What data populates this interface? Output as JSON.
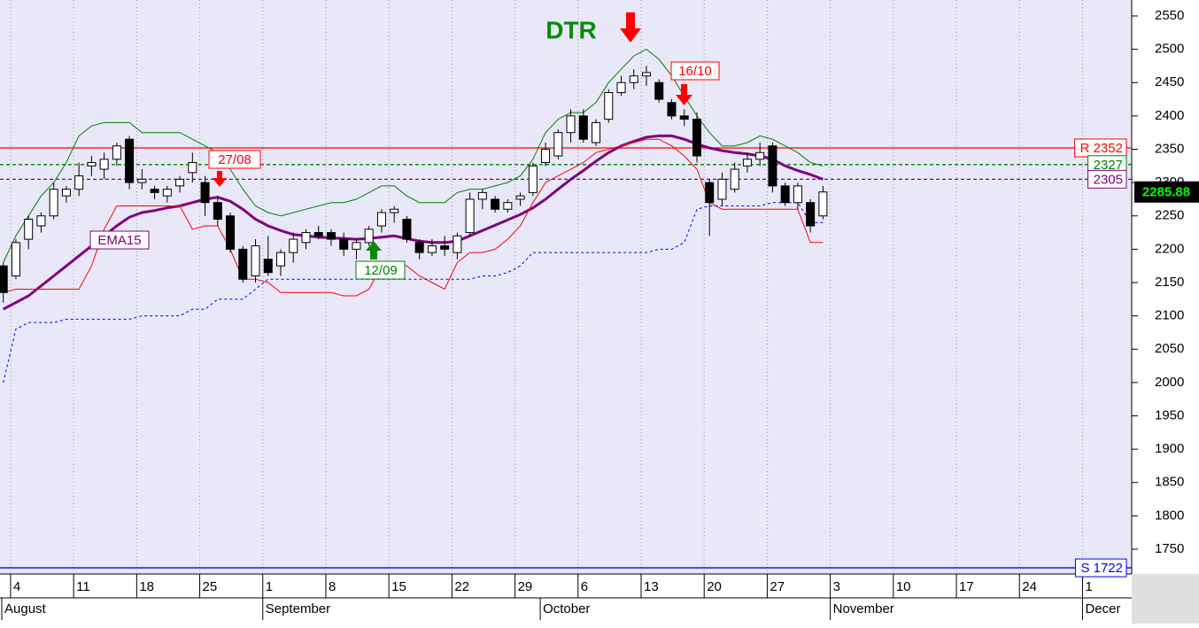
{
  "chart_data": {
    "type": "candlestick",
    "xlim": [
      -1.26,
      88.48
    ],
    "ylim": [
      1712.8,
      2573.9
    ],
    "yticks": [
      1750,
      1800,
      1850,
      1900,
      1950,
      2000,
      2050,
      2100,
      2150,
      2200,
      2250,
      2300,
      2350,
      2400,
      2450,
      2500,
      2550
    ],
    "xticks": [
      {
        "value": 0,
        "label": "4"
      },
      {
        "value": 5,
        "label": "11"
      },
      {
        "value": 10,
        "label": "18"
      },
      {
        "value": 15,
        "label": "25"
      },
      {
        "value": 20,
        "label": "1"
      },
      {
        "value": 25,
        "label": "8"
      },
      {
        "value": 30,
        "label": "15"
      },
      {
        "value": 35,
        "label": "22"
      },
      {
        "value": 40,
        "label": "29"
      },
      {
        "value": 45,
        "label": "6"
      },
      {
        "value": 50,
        "label": "13"
      },
      {
        "value": 55,
        "label": "20"
      },
      {
        "value": 60,
        "label": "27"
      },
      {
        "value": 65,
        "label": "3"
      },
      {
        "value": 70,
        "label": "10"
      },
      {
        "value": 75,
        "label": "17"
      },
      {
        "value": 80,
        "label": "24"
      },
      {
        "value": 85,
        "label": "1"
      }
    ],
    "months": [
      {
        "value": -1,
        "label": "August"
      },
      {
        "value": 20,
        "label": "September"
      },
      {
        "value": 42,
        "label": "October"
      },
      {
        "value": 65,
        "label": "November"
      },
      {
        "value": 85,
        "label": "Decer"
      }
    ],
    "candles": {
      "x": [
        -1,
        0,
        1,
        2,
        3,
        4,
        5,
        6,
        7,
        8,
        9,
        10,
        11,
        12,
        13,
        14,
        15,
        16,
        17,
        18,
        19,
        20,
        21,
        22,
        23,
        24,
        25,
        26,
        27,
        28,
        29,
        30,
        31,
        32,
        33,
        34,
        35,
        36,
        37,
        38,
        39,
        40,
        41,
        42,
        43,
        44,
        45,
        46,
        47,
        48,
        49,
        50,
        51,
        52,
        53,
        54,
        55,
        56,
        57,
        58,
        59,
        60,
        61,
        62,
        63,
        64
      ],
      "open": [
        2175,
        2160,
        2215,
        2235,
        2250,
        2280,
        2290,
        2325,
        2320,
        2335,
        2365,
        2300,
        2290,
        2280,
        2295,
        2315,
        2300,
        2270,
        2250,
        2200,
        2160,
        2185,
        2175,
        2195,
        2210,
        2225,
        2225,
        2215,
        2200,
        2210,
        2235,
        2255,
        2245,
        2210,
        2195,
        2205,
        2195,
        2225,
        2275,
        2275,
        2260,
        2275,
        2285,
        2330,
        2340,
        2375,
        2400,
        2360,
        2395,
        2435,
        2450,
        2460,
        2450,
        2420,
        2400,
        2395,
        2300,
        2275,
        2290,
        2325,
        2335,
        2355,
        2295,
        2270,
        2270,
        2250
      ],
      "high": [
        2180,
        2215,
        2250,
        2255,
        2300,
        2295,
        2330,
        2340,
        2345,
        2360,
        2370,
        2320,
        2295,
        2295,
        2310,
        2345,
        2310,
        2280,
        2255,
        2205,
        2215,
        2220,
        2200,
        2225,
        2230,
        2235,
        2230,
        2225,
        2215,
        2235,
        2260,
        2265,
        2250,
        2215,
        2215,
        2220,
        2225,
        2285,
        2290,
        2280,
        2275,
        2285,
        2330,
        2360,
        2380,
        2410,
        2410,
        2395,
        2440,
        2460,
        2470,
        2475,
        2455,
        2425,
        2410,
        2405,
        2305,
        2315,
        2330,
        2345,
        2360,
        2360,
        2300,
        2300,
        2275,
        2295
      ],
      "low": [
        2120,
        2155,
        2200,
        2225,
        2245,
        2270,
        2280,
        2310,
        2305,
        2325,
        2290,
        2290,
        2275,
        2270,
        2285,
        2300,
        2250,
        2235,
        2195,
        2150,
        2150,
        2160,
        2160,
        2180,
        2200,
        2215,
        2205,
        2190,
        2185,
        2205,
        2225,
        2240,
        2210,
        2185,
        2190,
        2190,
        2185,
        2220,
        2260,
        2255,
        2255,
        2265,
        2280,
        2325,
        2335,
        2360,
        2360,
        2355,
        2390,
        2430,
        2440,
        2445,
        2420,
        2395,
        2385,
        2330,
        2220,
        2265,
        2285,
        2315,
        2325,
        2285,
        2265,
        2260,
        2225,
        2245
      ],
      "close": [
        2135,
        2210,
        2245,
        2250,
        2290,
        2290,
        2310,
        2330,
        2335,
        2355,
        2300,
        2305,
        2285,
        2290,
        2305,
        2330,
        2270,
        2245,
        2200,
        2155,
        2205,
        2165,
        2195,
        2215,
        2225,
        2220,
        2215,
        2200,
        2210,
        2230,
        2255,
        2260,
        2215,
        2195,
        2205,
        2200,
        2220,
        2275,
        2285,
        2260,
        2270,
        2280,
        2325,
        2350,
        2375,
        2400,
        2365,
        2390,
        2435,
        2450,
        2460,
        2465,
        2425,
        2400,
        2395,
        2340,
        2270,
        2305,
        2320,
        2335,
        2345,
        2295,
        2270,
        2295,
        2235,
        2285.88
      ]
    },
    "series": [
      {
        "name": "EMA15",
        "color": "#800080",
        "width": 3,
        "values": [
          2110,
          2120,
          2130,
          2145,
          2160,
          2175,
          2190,
          2205,
          2220,
          2235,
          2248,
          2255,
          2258,
          2262,
          2265,
          2270,
          2275,
          2278,
          2272,
          2260,
          2245,
          2235,
          2228,
          2222,
          2220,
          2218,
          2217,
          2216,
          2215,
          2216,
          2218,
          2220,
          2216,
          2212,
          2210,
          2210,
          2212,
          2220,
          2228,
          2236,
          2244,
          2252,
          2262,
          2275,
          2290,
          2305,
          2318,
          2332,
          2345,
          2355,
          2362,
          2368,
          2370,
          2370,
          2365,
          2358,
          2352,
          2348,
          2345,
          2343,
          2340,
          2335,
          2325,
          2318,
          2312,
          2305
        ]
      },
      {
        "color": "#008000",
        "width": 1,
        "values": [
          2180,
          2220,
          2250,
          2280,
          2300,
          2330,
          2370,
          2385,
          2390,
          2390,
          2390,
          2375,
          2375,
          2375,
          2375,
          2365,
          2355,
          2345,
          2320,
          2290,
          2265,
          2255,
          2250,
          2255,
          2260,
          2265,
          2270,
          2270,
          2275,
          2285,
          2295,
          2295,
          2280,
          2270,
          2270,
          2270,
          2285,
          2290,
          2290,
          2295,
          2300,
          2310,
          2335,
          2375,
          2395,
          2405,
          2405,
          2420,
          2450,
          2470,
          2490,
          2500,
          2485,
          2460,
          2430,
          2400,
          2375,
          2355,
          2355,
          2360,
          2370,
          2365,
          2355,
          2345,
          2330,
          2325
        ]
      },
      {
        "color": "#ff0000",
        "width": 1,
        "values": [
          2135,
          2140,
          2140,
          2140,
          2140,
          2140,
          2140,
          2175,
          2230,
          2265,
          2265,
          2265,
          2265,
          2265,
          2265,
          2230,
          2235,
          2235,
          2200,
          2155,
          2155,
          2150,
          2135,
          2135,
          2135,
          2135,
          2135,
          2130,
          2130,
          2140,
          2175,
          2180,
          2175,
          2160,
          2150,
          2140,
          2180,
          2195,
          2195,
          2200,
          2215,
          2235,
          2270,
          2300,
          2310,
          2320,
          2330,
          2345,
          2350,
          2355,
          2360,
          2365,
          2365,
          2355,
          2340,
          2320,
          2270,
          2260,
          2260,
          2260,
          2260,
          2260,
          2260,
          2260,
          2210,
          2210
        ]
      },
      {
        "color": "#0000ff",
        "width": 1,
        "dash": true,
        "values": [
          2000,
          2080,
          2090,
          2090,
          2090,
          2095,
          2095,
          2095,
          2095,
          2095,
          2095,
          2100,
          2100,
          2100,
          2100,
          2110,
          2110,
          2125,
          2125,
          2125,
          2140,
          2155,
          2155,
          2155,
          2155,
          2155,
          2155,
          2155,
          2155,
          2155,
          2155,
          2155,
          2155,
          2155,
          2155,
          2155,
          2155,
          2155,
          2160,
          2160,
          2165,
          2175,
          2195,
          2195,
          2195,
          2195,
          2195,
          2195,
          2195,
          2195,
          2195,
          2195,
          2200,
          2200,
          2210,
          2260,
          2265,
          2265,
          2265,
          2265,
          2265,
          2270,
          2270,
          2270,
          2240,
          2240
        ]
      }
    ],
    "levels": [
      {
        "value": 2352,
        "label": "R 2352",
        "color": "#ff0000",
        "dash": false
      },
      {
        "value": 2327,
        "label": "2327",
        "color": "#008000",
        "dash": true
      },
      {
        "value": 2305,
        "label": "2305",
        "color": "#800080",
        "dash": true
      },
      {
        "value": 1722,
        "label": "S 1722",
        "color": "#0000ff",
        "dash": false
      }
    ],
    "last_price": {
      "value": 2285.88,
      "label": "2285.88"
    },
    "annotations": [
      "DTR",
      "27/08",
      "16/10",
      "12/09"
    ]
  }
}
